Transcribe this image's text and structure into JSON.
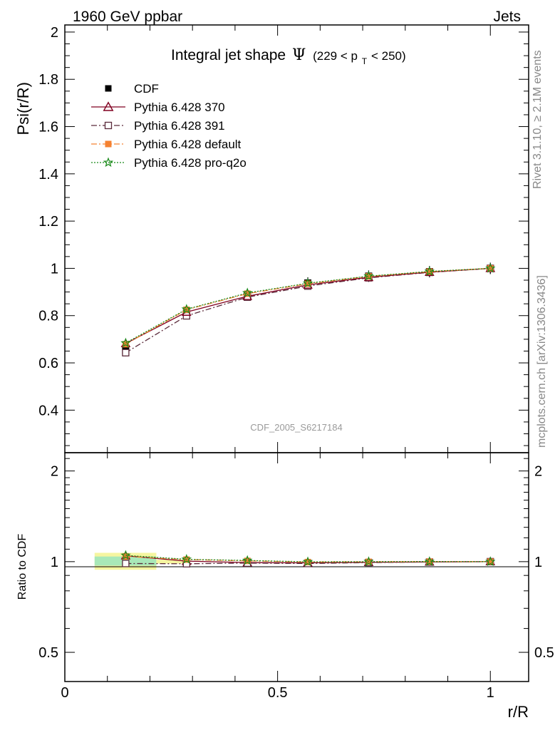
{
  "header": {
    "left": "1960 GeV ppbar",
    "right": "Jets"
  },
  "side_labels": {
    "rivet": "Rivet 3.1.10, ≥ 2.1M events",
    "mcplots": "mcplots.cern.ch [arXiv:1306.3436]"
  },
  "watermark": "CDF_2005_S6217184",
  "chart_data": [
    {
      "type": "line",
      "title": "Integral jet shape",
      "title_symbol": "Ψ",
      "title_range_prefix": "(229 < p",
      "title_range_sub": "T",
      "title_range_suffix": " < 250)",
      "ylabel": "Psi(r/R)",
      "xlim": [
        0,
        1.09
      ],
      "ylim": [
        0.22,
        2.03
      ],
      "yticks": [
        "0.4",
        "0.6",
        "0.8",
        "1",
        "1.2",
        "1.4",
        "1.6",
        "1.8",
        "2"
      ],
      "x": [
        0.143,
        0.286,
        0.429,
        0.571,
        0.714,
        0.857,
        1.0
      ],
      "series": [
        {
          "name": "CDF",
          "color": "#000000",
          "marker": "filled-square",
          "line": "none",
          "values": [
            0.652,
            0.812,
            0.888,
            0.938,
            0.967,
            0.986,
            1.0
          ]
        },
        {
          "name": "Pythia 6.428 370",
          "color": "#800020",
          "marker": "open-triangle",
          "line": "solid",
          "values": [
            0.682,
            0.815,
            0.882,
            0.93,
            0.962,
            0.984,
            1.0
          ]
        },
        {
          "name": "Pythia 6.428 391",
          "color": "#5a2a3a",
          "marker": "open-square",
          "line": "dashdot",
          "values": [
            0.643,
            0.799,
            0.878,
            0.925,
            0.96,
            0.983,
            1.0
          ]
        },
        {
          "name": "Pythia 6.428 default",
          "color": "#f58231",
          "marker": "filled-square",
          "line": "dashdot",
          "values": [
            0.679,
            0.825,
            0.893,
            0.935,
            0.966,
            0.986,
            1.0
          ]
        },
        {
          "name": "Pythia 6.428 pro-q2o",
          "color": "#1a8a1a",
          "marker": "star",
          "line": "dotted",
          "values": [
            0.684,
            0.827,
            0.896,
            0.937,
            0.967,
            0.987,
            1.0
          ]
        }
      ]
    },
    {
      "type": "line",
      "ylabel": "Ratio to CDF",
      "xlabel": "r/R",
      "xlim": [
        0,
        1.09
      ],
      "ylim": [
        0.4,
        2.3
      ],
      "scale": "log",
      "xticks": [
        "0",
        "0.5",
        "1"
      ],
      "yticks": [
        "0.5",
        "1",
        "2"
      ],
      "x": [
        0.143,
        0.286,
        0.429,
        0.571,
        0.714,
        0.857,
        1.0
      ],
      "band_outer": [
        0.07,
        0.215,
        0.94,
        1.07
      ],
      "band_inner": [
        0.07,
        0.215,
        0.97,
        1.04
      ],
      "series": [
        {
          "name": "Pythia 6.428 370",
          "values": [
            1.046,
            1.004,
            0.993,
            0.991,
            0.995,
            0.998,
            1.0
          ]
        },
        {
          "name": "Pythia 6.428 391",
          "values": [
            0.986,
            0.984,
            0.989,
            0.986,
            0.993,
            0.997,
            1.0
          ]
        },
        {
          "name": "Pythia 6.428 default",
          "values": [
            1.041,
            1.016,
            1.006,
            0.997,
            0.999,
            1.0,
            1.0
          ]
        },
        {
          "name": "Pythia 6.428 pro-q2o",
          "values": [
            1.049,
            1.018,
            1.009,
            0.999,
            1.0,
            1.001,
            1.0
          ]
        }
      ]
    }
  ]
}
